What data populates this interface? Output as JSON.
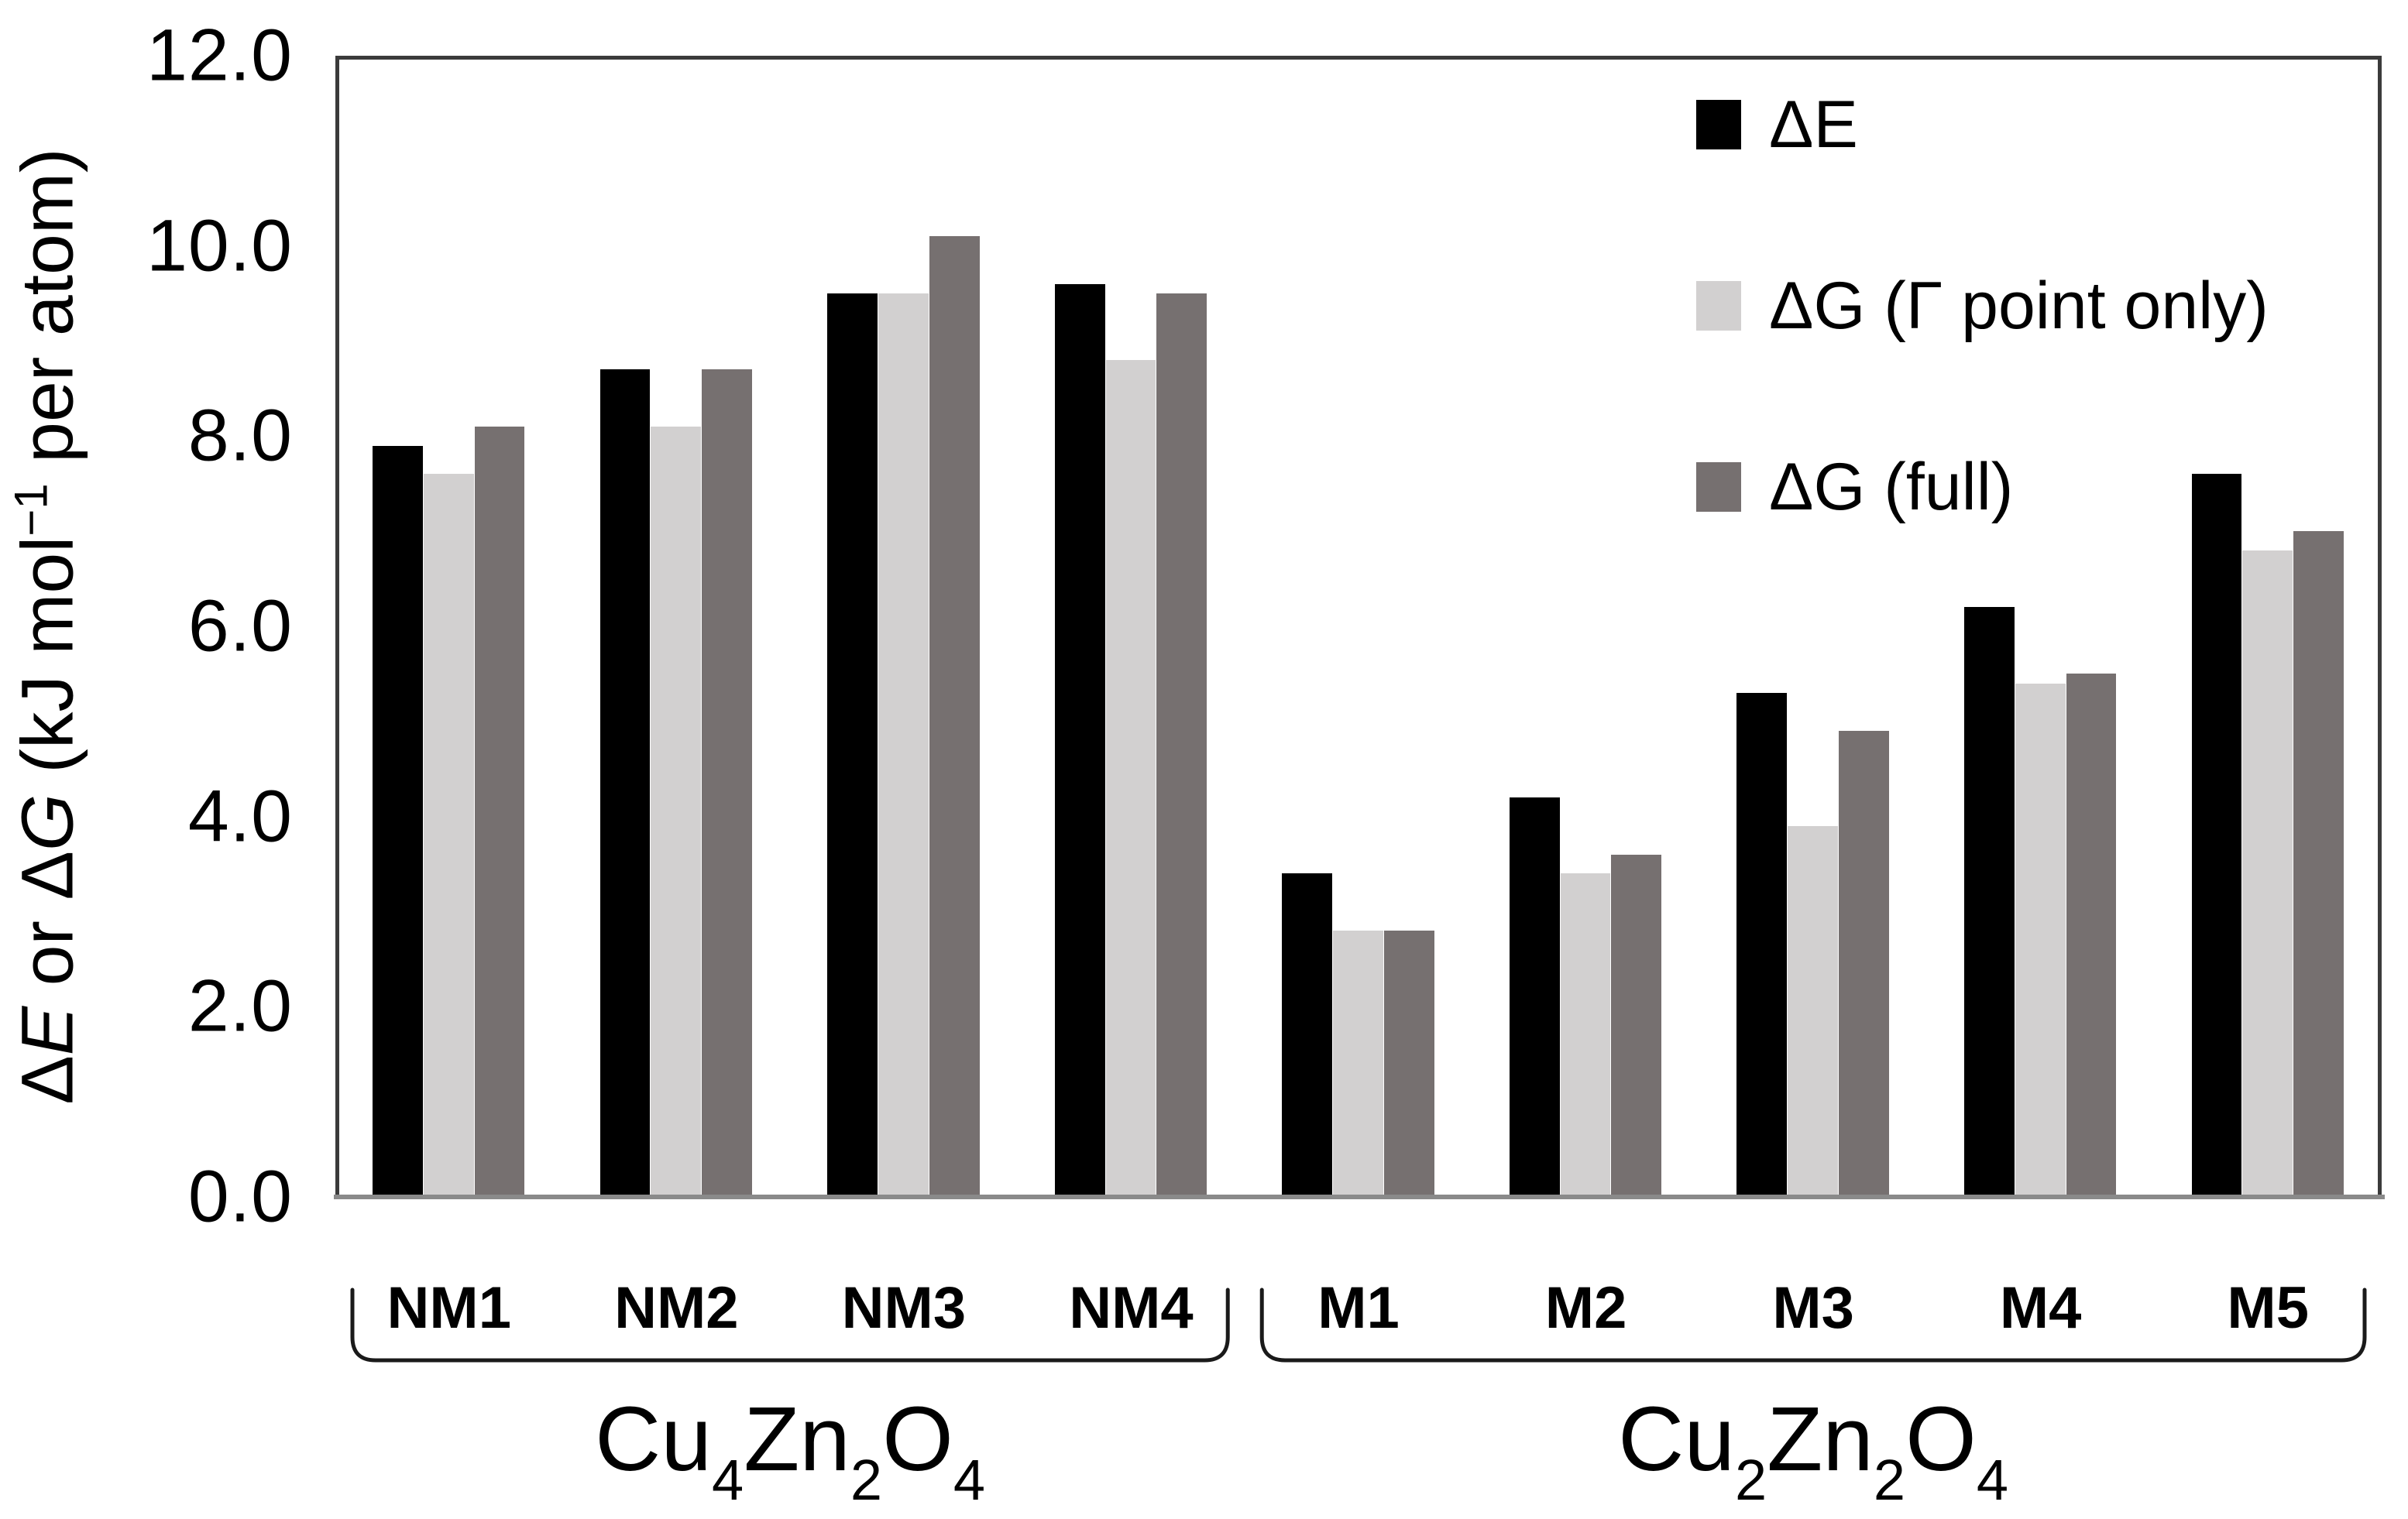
{
  "chart_data": {
    "type": "bar",
    "title": "",
    "ylabel_segments": [
      {
        "text": "Δ"
      },
      {
        "text": "E",
        "style": "italic"
      },
      {
        "text": " or Δ"
      },
      {
        "text": "G",
        "style": "italic"
      },
      {
        "text": " (kJ mol"
      },
      {
        "text": "−1",
        "style": "sup"
      },
      {
        "text": " per atom)"
      }
    ],
    "ylim": [
      0,
      12
    ],
    "ytick_labels": [
      "12.0",
      "10.0",
      "8.0",
      "6.0",
      "4.0",
      "2.0",
      "0.0"
    ],
    "grid": false,
    "legend_position": "top-right-inside",
    "categories": [
      "NM1",
      "NM2",
      "NM3",
      "NM4",
      "M1",
      "M2",
      "M3",
      "M4",
      "M5"
    ],
    "series": [
      {
        "name": "ΔE",
        "color": "#000000",
        "values": [
          7.9,
          8.7,
          9.5,
          9.6,
          3.4,
          4.2,
          5.3,
          6.2,
          7.6
        ]
      },
      {
        "name": "ΔG (Γ point only)",
        "color": "#d2d0d0",
        "values": [
          7.6,
          8.1,
          9.5,
          8.8,
          2.8,
          3.4,
          3.9,
          5.4,
          6.8
        ]
      },
      {
        "name": "ΔG (full)",
        "color": "#767070",
        "values": [
          8.1,
          8.7,
          10.1,
          9.5,
          2.8,
          3.6,
          4.9,
          5.5,
          7.0
        ]
      }
    ],
    "groups": [
      {
        "label": "Cu4Zn2O4",
        "span": [
          0,
          3
        ]
      },
      {
        "label": "Cu2Zn2O4",
        "span": [
          4,
          8
        ]
      }
    ],
    "colors": {
      "frame": "#3b3b3b",
      "baseline": "#8a8a8a",
      "bracket": "#1a1a1a",
      "background": "#ffffff"
    }
  }
}
